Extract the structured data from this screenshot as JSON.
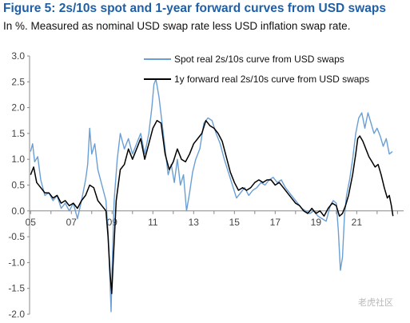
{
  "title": "Figure 5: 2s/10s spot and 1-year forward curves from USD swaps",
  "subtitle": "In %. Measured as nominal USD swap rate less USD inflation swap rate.",
  "watermark": "老虎社区",
  "colors": {
    "title": "#1f5fa8",
    "spot": "#6a9fd6",
    "forward": "#000000",
    "axis": "#888888"
  },
  "chart_data": {
    "type": "line",
    "xlim": [
      2004.95,
      2023.3
    ],
    "ylim": [
      -2.0,
      3.0
    ],
    "x_ticks": [
      {
        "label": "05",
        "x": 2005
      },
      {
        "label": "07",
        "x": 2007
      },
      {
        "label": "09",
        "x": 2009
      },
      {
        "label": "11",
        "x": 2011
      },
      {
        "label": "13",
        "x": 2013
      },
      {
        "label": "15",
        "x": 2015
      },
      {
        "label": "17",
        "x": 2017
      },
      {
        "label": "19",
        "x": 2019
      },
      {
        "label": "21",
        "x": 2021
      }
    ],
    "y_ticks": [
      3.0,
      2.5,
      2.0,
      1.5,
      1.0,
      0.5,
      0.0,
      -0.5,
      -1.0,
      -1.5,
      -2.0
    ],
    "y_tick_labels": [
      "3.0",
      "2.5",
      "2.0",
      "1.5",
      "1.0",
      "0.5",
      "0.0",
      "-0.5",
      "-1.0",
      "-1.5",
      "-2.0"
    ],
    "legend_placement": "top-right",
    "series": [
      {
        "name": "Spot real 2s/10s curve from USD swaps",
        "points": [
          [
            2005.0,
            1.15
          ],
          [
            2005.1,
            1.3
          ],
          [
            2005.2,
            0.95
          ],
          [
            2005.35,
            1.05
          ],
          [
            2005.5,
            0.6
          ],
          [
            2005.7,
            0.3
          ],
          [
            2005.9,
            0.35
          ],
          [
            2006.1,
            0.2
          ],
          [
            2006.3,
            0.3
          ],
          [
            2006.5,
            0.05
          ],
          [
            2006.7,
            0.15
          ],
          [
            2006.9,
            0.0
          ],
          [
            2007.1,
            0.15
          ],
          [
            2007.3,
            -0.15
          ],
          [
            2007.5,
            0.2
          ],
          [
            2007.7,
            0.6
          ],
          [
            2007.8,
            0.9
          ],
          [
            2007.9,
            1.6
          ],
          [
            2008.0,
            1.1
          ],
          [
            2008.15,
            1.3
          ],
          [
            2008.3,
            0.8
          ],
          [
            2008.5,
            0.5
          ],
          [
            2008.7,
            0.2
          ],
          [
            2008.8,
            -0.4
          ],
          [
            2008.88,
            -1.2
          ],
          [
            2008.95,
            -1.95
          ],
          [
            2009.0,
            -1.1
          ],
          [
            2009.1,
            0.2
          ],
          [
            2009.25,
            1.0
          ],
          [
            2009.4,
            1.5
          ],
          [
            2009.6,
            1.2
          ],
          [
            2009.8,
            1.4
          ],
          [
            2010.0,
            1.1
          ],
          [
            2010.2,
            1.3
          ],
          [
            2010.4,
            1.5
          ],
          [
            2010.6,
            1.1
          ],
          [
            2010.8,
            1.5
          ],
          [
            2010.95,
            2.0
          ],
          [
            2011.05,
            2.45
          ],
          [
            2011.15,
            2.55
          ],
          [
            2011.3,
            2.2
          ],
          [
            2011.45,
            1.7
          ],
          [
            2011.6,
            1.2
          ],
          [
            2011.75,
            0.7
          ],
          [
            2011.9,
            0.9
          ],
          [
            2012.05,
            0.55
          ],
          [
            2012.2,
            1.0
          ],
          [
            2012.35,
            0.5
          ],
          [
            2012.5,
            0.7
          ],
          [
            2012.65,
            0.0
          ],
          [
            2012.8,
            0.35
          ],
          [
            2012.95,
            0.75
          ],
          [
            2013.1,
            1.0
          ],
          [
            2013.3,
            1.2
          ],
          [
            2013.5,
            1.7
          ],
          [
            2013.7,
            1.8
          ],
          [
            2013.9,
            1.75
          ],
          [
            2014.1,
            1.5
          ],
          [
            2014.3,
            1.3
          ],
          [
            2014.5,
            1.0
          ],
          [
            2014.7,
            0.75
          ],
          [
            2014.9,
            0.5
          ],
          [
            2015.1,
            0.25
          ],
          [
            2015.3,
            0.35
          ],
          [
            2015.5,
            0.45
          ],
          [
            2015.7,
            0.3
          ],
          [
            2015.9,
            0.4
          ],
          [
            2016.1,
            0.45
          ],
          [
            2016.3,
            0.55
          ],
          [
            2016.5,
            0.5
          ],
          [
            2016.7,
            0.6
          ],
          [
            2016.9,
            0.65
          ],
          [
            2017.1,
            0.55
          ],
          [
            2017.3,
            0.6
          ],
          [
            2017.5,
            0.45
          ],
          [
            2017.7,
            0.35
          ],
          [
            2017.9,
            0.25
          ],
          [
            2018.1,
            0.15
          ],
          [
            2018.3,
            0.05
          ],
          [
            2018.5,
            0.0
          ],
          [
            2018.7,
            -0.05
          ],
          [
            2018.9,
            0.0
          ],
          [
            2019.1,
            -0.1
          ],
          [
            2019.3,
            -0.15
          ],
          [
            2019.5,
            -0.2
          ],
          [
            2019.7,
            0.1
          ],
          [
            2019.85,
            0.2
          ],
          [
            2020.0,
            0.15
          ],
          [
            2020.1,
            -0.4
          ],
          [
            2020.2,
            -1.15
          ],
          [
            2020.3,
            -0.9
          ],
          [
            2020.4,
            -0.1
          ],
          [
            2020.5,
            0.3
          ],
          [
            2020.65,
            0.6
          ],
          [
            2020.8,
            1.0
          ],
          [
            2020.95,
            1.5
          ],
          [
            2021.1,
            1.8
          ],
          [
            2021.25,
            1.9
          ],
          [
            2021.4,
            1.6
          ],
          [
            2021.55,
            1.9
          ],
          [
            2021.7,
            1.7
          ],
          [
            2021.85,
            1.5
          ],
          [
            2022.0,
            1.6
          ],
          [
            2022.15,
            1.45
          ],
          [
            2022.3,
            1.25
          ],
          [
            2022.45,
            1.4
          ],
          [
            2022.6,
            1.1
          ],
          [
            2022.75,
            1.15
          ]
        ]
      },
      {
        "name": "1y forward real 2s/10s curve from USD swaps",
        "points": [
          [
            2005.0,
            0.7
          ],
          [
            2005.15,
            0.85
          ],
          [
            2005.3,
            0.55
          ],
          [
            2005.5,
            0.45
          ],
          [
            2005.7,
            0.35
          ],
          [
            2005.9,
            0.35
          ],
          [
            2006.1,
            0.25
          ],
          [
            2006.3,
            0.3
          ],
          [
            2006.5,
            0.15
          ],
          [
            2006.7,
            0.2
          ],
          [
            2006.9,
            0.1
          ],
          [
            2007.1,
            0.15
          ],
          [
            2007.3,
            0.05
          ],
          [
            2007.5,
            0.2
          ],
          [
            2007.7,
            0.3
          ],
          [
            2007.9,
            0.5
          ],
          [
            2008.1,
            0.45
          ],
          [
            2008.3,
            0.2
          ],
          [
            2008.5,
            0.1
          ],
          [
            2008.7,
            0.0
          ],
          [
            2008.8,
            -0.5
          ],
          [
            2008.9,
            -1.2
          ],
          [
            2008.98,
            -1.6
          ],
          [
            2009.05,
            -1.0
          ],
          [
            2009.2,
            0.2
          ],
          [
            2009.4,
            0.8
          ],
          [
            2009.6,
            0.9
          ],
          [
            2009.8,
            1.2
          ],
          [
            2010.0,
            1.0
          ],
          [
            2010.2,
            1.2
          ],
          [
            2010.4,
            1.4
          ],
          [
            2010.6,
            1.0
          ],
          [
            2010.8,
            1.3
          ],
          [
            2011.0,
            1.6
          ],
          [
            2011.2,
            1.75
          ],
          [
            2011.4,
            1.7
          ],
          [
            2011.6,
            1.1
          ],
          [
            2011.8,
            0.8
          ],
          [
            2012.0,
            0.95
          ],
          [
            2012.2,
            1.2
          ],
          [
            2012.4,
            1.0
          ],
          [
            2012.6,
            0.95
          ],
          [
            2012.8,
            1.1
          ],
          [
            2013.0,
            1.3
          ],
          [
            2013.2,
            1.4
          ],
          [
            2013.4,
            1.5
          ],
          [
            2013.6,
            1.75
          ],
          [
            2013.8,
            1.65
          ],
          [
            2014.0,
            1.6
          ],
          [
            2014.2,
            1.5
          ],
          [
            2014.4,
            1.35
          ],
          [
            2014.6,
            1.05
          ],
          [
            2014.8,
            0.75
          ],
          [
            2015.0,
            0.55
          ],
          [
            2015.2,
            0.4
          ],
          [
            2015.4,
            0.45
          ],
          [
            2015.6,
            0.4
          ],
          [
            2015.8,
            0.45
          ],
          [
            2016.0,
            0.55
          ],
          [
            2016.2,
            0.6
          ],
          [
            2016.4,
            0.55
          ],
          [
            2016.6,
            0.6
          ],
          [
            2016.8,
            0.6
          ],
          [
            2017.0,
            0.5
          ],
          [
            2017.2,
            0.55
          ],
          [
            2017.4,
            0.45
          ],
          [
            2017.6,
            0.35
          ],
          [
            2017.8,
            0.25
          ],
          [
            2018.0,
            0.15
          ],
          [
            2018.2,
            0.1
          ],
          [
            2018.4,
            0.0
          ],
          [
            2018.6,
            -0.05
          ],
          [
            2018.8,
            0.05
          ],
          [
            2019.0,
            -0.05
          ],
          [
            2019.2,
            0.0
          ],
          [
            2019.4,
            -0.1
          ],
          [
            2019.6,
            0.05
          ],
          [
            2019.8,
            0.15
          ],
          [
            2020.0,
            0.1
          ],
          [
            2020.15,
            -0.1
          ],
          [
            2020.3,
            -0.05
          ],
          [
            2020.45,
            0.1
          ],
          [
            2020.6,
            0.3
          ],
          [
            2020.8,
            0.7
          ],
          [
            2020.95,
            1.1
          ],
          [
            2021.05,
            1.4
          ],
          [
            2021.15,
            1.45
          ],
          [
            2021.3,
            1.35
          ],
          [
            2021.45,
            1.2
          ],
          [
            2021.6,
            1.05
          ],
          [
            2021.75,
            0.95
          ],
          [
            2021.9,
            0.85
          ],
          [
            2022.05,
            0.9
          ],
          [
            2022.2,
            0.7
          ],
          [
            2022.35,
            0.45
          ],
          [
            2022.5,
            0.25
          ],
          [
            2022.6,
            0.3
          ],
          [
            2022.7,
            0.1
          ],
          [
            2022.78,
            -0.1
          ]
        ]
      }
    ]
  }
}
